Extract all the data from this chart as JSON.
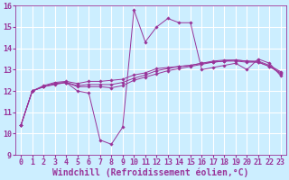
{
  "bg_color": "#cceeff",
  "grid_color": "#ffffff",
  "line_color": "#993399",
  "xlabel": "Windchill (Refroidissement éolien,°C)",
  "xlabel_fontsize": 7.0,
  "tick_fontsize": 6.0,
  "ylim": [
    9,
    16
  ],
  "xlim": [
    -0.5,
    23.5
  ],
  "yticks": [
    9,
    10,
    11,
    12,
    13,
    14,
    15,
    16
  ],
  "xticks": [
    0,
    1,
    2,
    3,
    4,
    5,
    6,
    7,
    8,
    9,
    10,
    11,
    12,
    13,
    14,
    15,
    16,
    17,
    18,
    19,
    20,
    21,
    22,
    23
  ],
  "series": [
    [
      10.4,
      12.0,
      12.2,
      12.3,
      12.4,
      12.0,
      11.9,
      9.7,
      9.5,
      10.3,
      15.8,
      14.3,
      15.0,
      15.4,
      15.2,
      15.2,
      13.0,
      13.1,
      13.2,
      13.3,
      13.0,
      13.5,
      13.3,
      12.7
    ],
    [
      10.4,
      12.0,
      12.2,
      12.35,
      12.4,
      12.2,
      12.2,
      12.2,
      12.15,
      12.25,
      12.5,
      12.65,
      12.8,
      12.95,
      13.05,
      13.15,
      13.25,
      13.35,
      13.4,
      13.45,
      13.4,
      13.35,
      13.15,
      12.8
    ],
    [
      10.4,
      12.0,
      12.2,
      12.35,
      12.4,
      12.25,
      12.3,
      12.3,
      12.3,
      12.4,
      12.6,
      12.75,
      12.95,
      13.05,
      13.15,
      13.2,
      13.3,
      13.35,
      13.4,
      13.4,
      13.35,
      13.35,
      13.15,
      12.85
    ],
    [
      10.4,
      12.0,
      12.25,
      12.4,
      12.45,
      12.35,
      12.45,
      12.45,
      12.5,
      12.55,
      12.75,
      12.85,
      13.05,
      13.1,
      13.15,
      13.2,
      13.3,
      13.4,
      13.45,
      13.45,
      13.4,
      13.4,
      13.2,
      12.9
    ]
  ]
}
